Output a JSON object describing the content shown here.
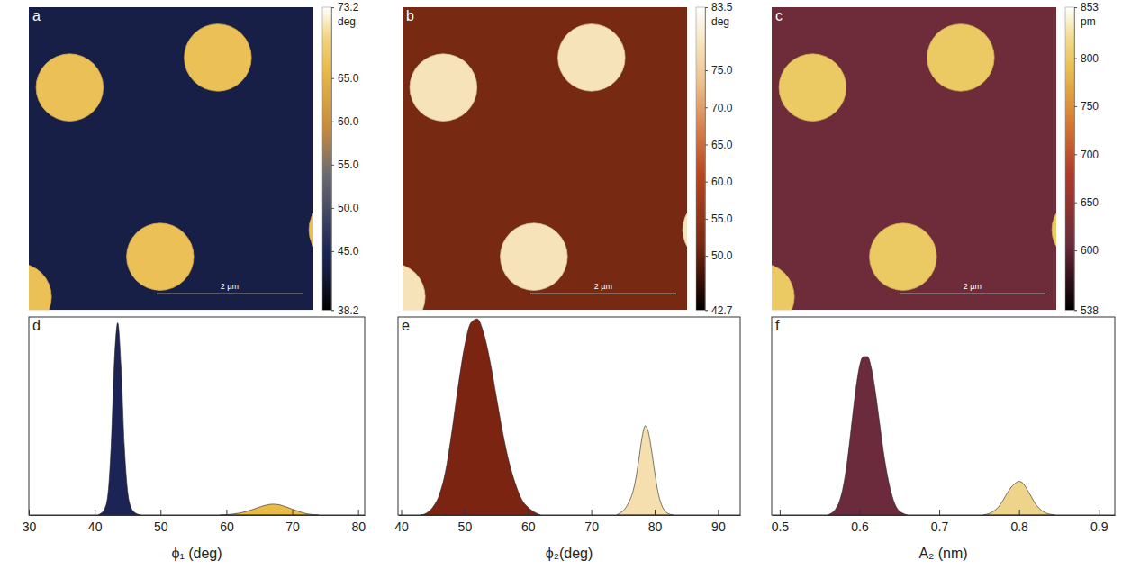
{
  "chart_data": [
    {
      "type": "image",
      "panel": "a",
      "xlim": [
        0,
        3.9
      ],
      "ylim": [
        0,
        4.15
      ],
      "tick_labels": false,
      "background": 43.5,
      "disk_value": 67,
      "disks": [
        {
          "x": 0.56,
          "y": 1.1,
          "r": 0.46
        },
        {
          "x": 2.59,
          "y": 0.69,
          "r": 0.46
        },
        {
          "x": 1.8,
          "y": 3.42,
          "r": 0.46
        },
        {
          "x": -0.15,
          "y": 3.97,
          "r": 0.46
        },
        {
          "x": 4.3,
          "y": 3.05,
          "r": 0.46
        }
      ],
      "scale_bar": {
        "length": 2,
        "label": "2 µm"
      },
      "colorbar": {
        "range": [
          38.2,
          73.2
        ],
        "unit": "deg",
        "ticks": [
          38.2,
          {
            "value": 45,
            "label": "45.0"
          },
          {
            "value": 50,
            "label": "50.0"
          },
          {
            "value": 55,
            "label": "55.0"
          },
          {
            "value": 60,
            "label": "60.0"
          },
          {
            "value": 65,
            "label": "65.0"
          },
          73.2
        ]
      }
    },
    {
      "type": "image",
      "panel": "b",
      "xlim": [
        0,
        3.9
      ],
      "ylim": [
        0,
        4.15
      ],
      "tick_labels": false,
      "background": 51.5,
      "disk_value": 78.5,
      "disks": [
        {
          "x": 0.56,
          "y": 1.1,
          "r": 0.46
        },
        {
          "x": 2.59,
          "y": 0.69,
          "r": 0.46
        },
        {
          "x": 1.8,
          "y": 3.42,
          "r": 0.46
        },
        {
          "x": -0.15,
          "y": 3.97,
          "r": 0.46
        },
        {
          "x": 4.3,
          "y": 3.05,
          "r": 0.46
        }
      ],
      "scale_bar": {
        "length": 2,
        "label": "2 µm"
      },
      "colorbar": {
        "range": [
          42.7,
          83.5
        ],
        "unit": "deg",
        "ticks": [
          42.7,
          {
            "value": 50,
            "label": "50.0"
          },
          {
            "value": 55,
            "label": "55.0"
          },
          {
            "value": 60,
            "label": "60.0"
          },
          {
            "value": 65,
            "label": "65.0"
          },
          {
            "value": 70,
            "label": "70.0"
          },
          {
            "value": 75,
            "label": "75.0"
          },
          83.5
        ]
      }
    },
    {
      "type": "image",
      "panel": "c",
      "xlim": [
        0,
        3.9
      ],
      "ylim": [
        0,
        4.15
      ],
      "tick_labels": false,
      "background": 610,
      "disk_value": 800,
      "disks": [
        {
          "x": 0.56,
          "y": 1.1,
          "r": 0.46
        },
        {
          "x": 2.59,
          "y": 0.69,
          "r": 0.46
        },
        {
          "x": 1.8,
          "y": 3.42,
          "r": 0.46
        },
        {
          "x": -0.15,
          "y": 3.97,
          "r": 0.46
        },
        {
          "x": 4.3,
          "y": 3.05,
          "r": 0.46
        }
      ],
      "scale_bar": {
        "length": 2,
        "label": "2 µm"
      },
      "colorbar": {
        "range": [
          538,
          853
        ],
        "unit": "pm",
        "ticks": [
          538,
          600,
          650,
          700,
          750,
          800,
          853
        ]
      }
    },
    {
      "type": "area",
      "panel": "d",
      "xlabel": "ϕ₁ (deg)",
      "xlim": [
        30,
        81
      ],
      "xticks": [
        30,
        40,
        50,
        60,
        70,
        80
      ],
      "ylim": [
        0,
        1
      ],
      "tick_labels": "x",
      "series": [
        {
          "color": "#1b2454",
          "x": [
            40.5,
            41,
            41.5,
            42,
            42.5,
            43,
            43.5,
            44,
            44.5,
            45,
            45.5,
            46,
            46.5,
            47
          ],
          "values": [
            0,
            0.01,
            0.03,
            0.1,
            0.35,
            0.78,
            0.97,
            0.75,
            0.35,
            0.12,
            0.04,
            0.015,
            0.005,
            0
          ]
        },
        {
          "color": "#e8bb45",
          "x": [
            59,
            60,
            61,
            62,
            63,
            64,
            65,
            66,
            67,
            68,
            69,
            70,
            71,
            72,
            73,
            74
          ],
          "values": [
            0,
            0.002,
            0.005,
            0.01,
            0.018,
            0.028,
            0.04,
            0.05,
            0.055,
            0.052,
            0.042,
            0.03,
            0.018,
            0.008,
            0.003,
            0
          ]
        }
      ]
    },
    {
      "type": "area",
      "panel": "e",
      "xlabel": "ϕ₂(deg)",
      "xlim": [
        39.5,
        93.5
      ],
      "xticks": [
        40,
        50,
        60,
        70,
        80,
        90
      ],
      "ylim": [
        0,
        1
      ],
      "tick_labels": "x",
      "series": [
        {
          "color": "#7b2412",
          "x": [
            43,
            44,
            45,
            46,
            47,
            48,
            49,
            50,
            51,
            52,
            53,
            54,
            55,
            56,
            57,
            58,
            59,
            60,
            61,
            62
          ],
          "values": [
            0,
            0.01,
            0.04,
            0.1,
            0.22,
            0.42,
            0.65,
            0.85,
            0.97,
            0.99,
            0.92,
            0.78,
            0.6,
            0.42,
            0.27,
            0.16,
            0.08,
            0.04,
            0.015,
            0
          ]
        },
        {
          "color": "#f5dfae",
          "x": [
            74,
            74.5,
            75,
            75.5,
            76,
            76.5,
            77,
            77.5,
            78,
            78.5,
            79,
            79.5,
            80,
            80.5,
            81,
            81.5,
            82,
            82.5,
            83
          ],
          "values": [
            0,
            0.01,
            0.02,
            0.04,
            0.07,
            0.11,
            0.18,
            0.28,
            0.39,
            0.45,
            0.42,
            0.33,
            0.22,
            0.12,
            0.06,
            0.025,
            0.01,
            0.003,
            0
          ]
        }
      ]
    },
    {
      "type": "area",
      "panel": "f",
      "xlabel": "A₂ (nm)",
      "xlim": [
        0.49,
        0.92
      ],
      "xticks": [
        0.5,
        0.6,
        0.7,
        0.8,
        0.9
      ],
      "ylim": [
        0,
        1
      ],
      "tick_labels": "x",
      "series": [
        {
          "color": "#6b2b3c",
          "x": [
            0.56,
            0.565,
            0.57,
            0.575,
            0.58,
            0.585,
            0.59,
            0.595,
            0.6,
            0.605,
            0.61,
            0.615,
            0.62,
            0.625,
            0.63,
            0.635,
            0.64,
            0.645,
            0.65,
            0.655,
            0.66
          ],
          "values": [
            0,
            0.01,
            0.03,
            0.07,
            0.15,
            0.28,
            0.45,
            0.62,
            0.75,
            0.8,
            0.8,
            0.74,
            0.62,
            0.47,
            0.32,
            0.2,
            0.11,
            0.05,
            0.02,
            0.008,
            0
          ]
        },
        {
          "color": "#eed48a",
          "x": [
            0.755,
            0.76,
            0.765,
            0.77,
            0.775,
            0.78,
            0.785,
            0.79,
            0.795,
            0.8,
            0.805,
            0.81,
            0.815,
            0.82,
            0.825,
            0.83,
            0.835,
            0.84,
            0.845
          ],
          "values": [
            0,
            0.005,
            0.012,
            0.025,
            0.045,
            0.075,
            0.11,
            0.14,
            0.16,
            0.17,
            0.16,
            0.13,
            0.095,
            0.06,
            0.035,
            0.018,
            0.008,
            0.003,
            0
          ]
        }
      ]
    }
  ]
}
